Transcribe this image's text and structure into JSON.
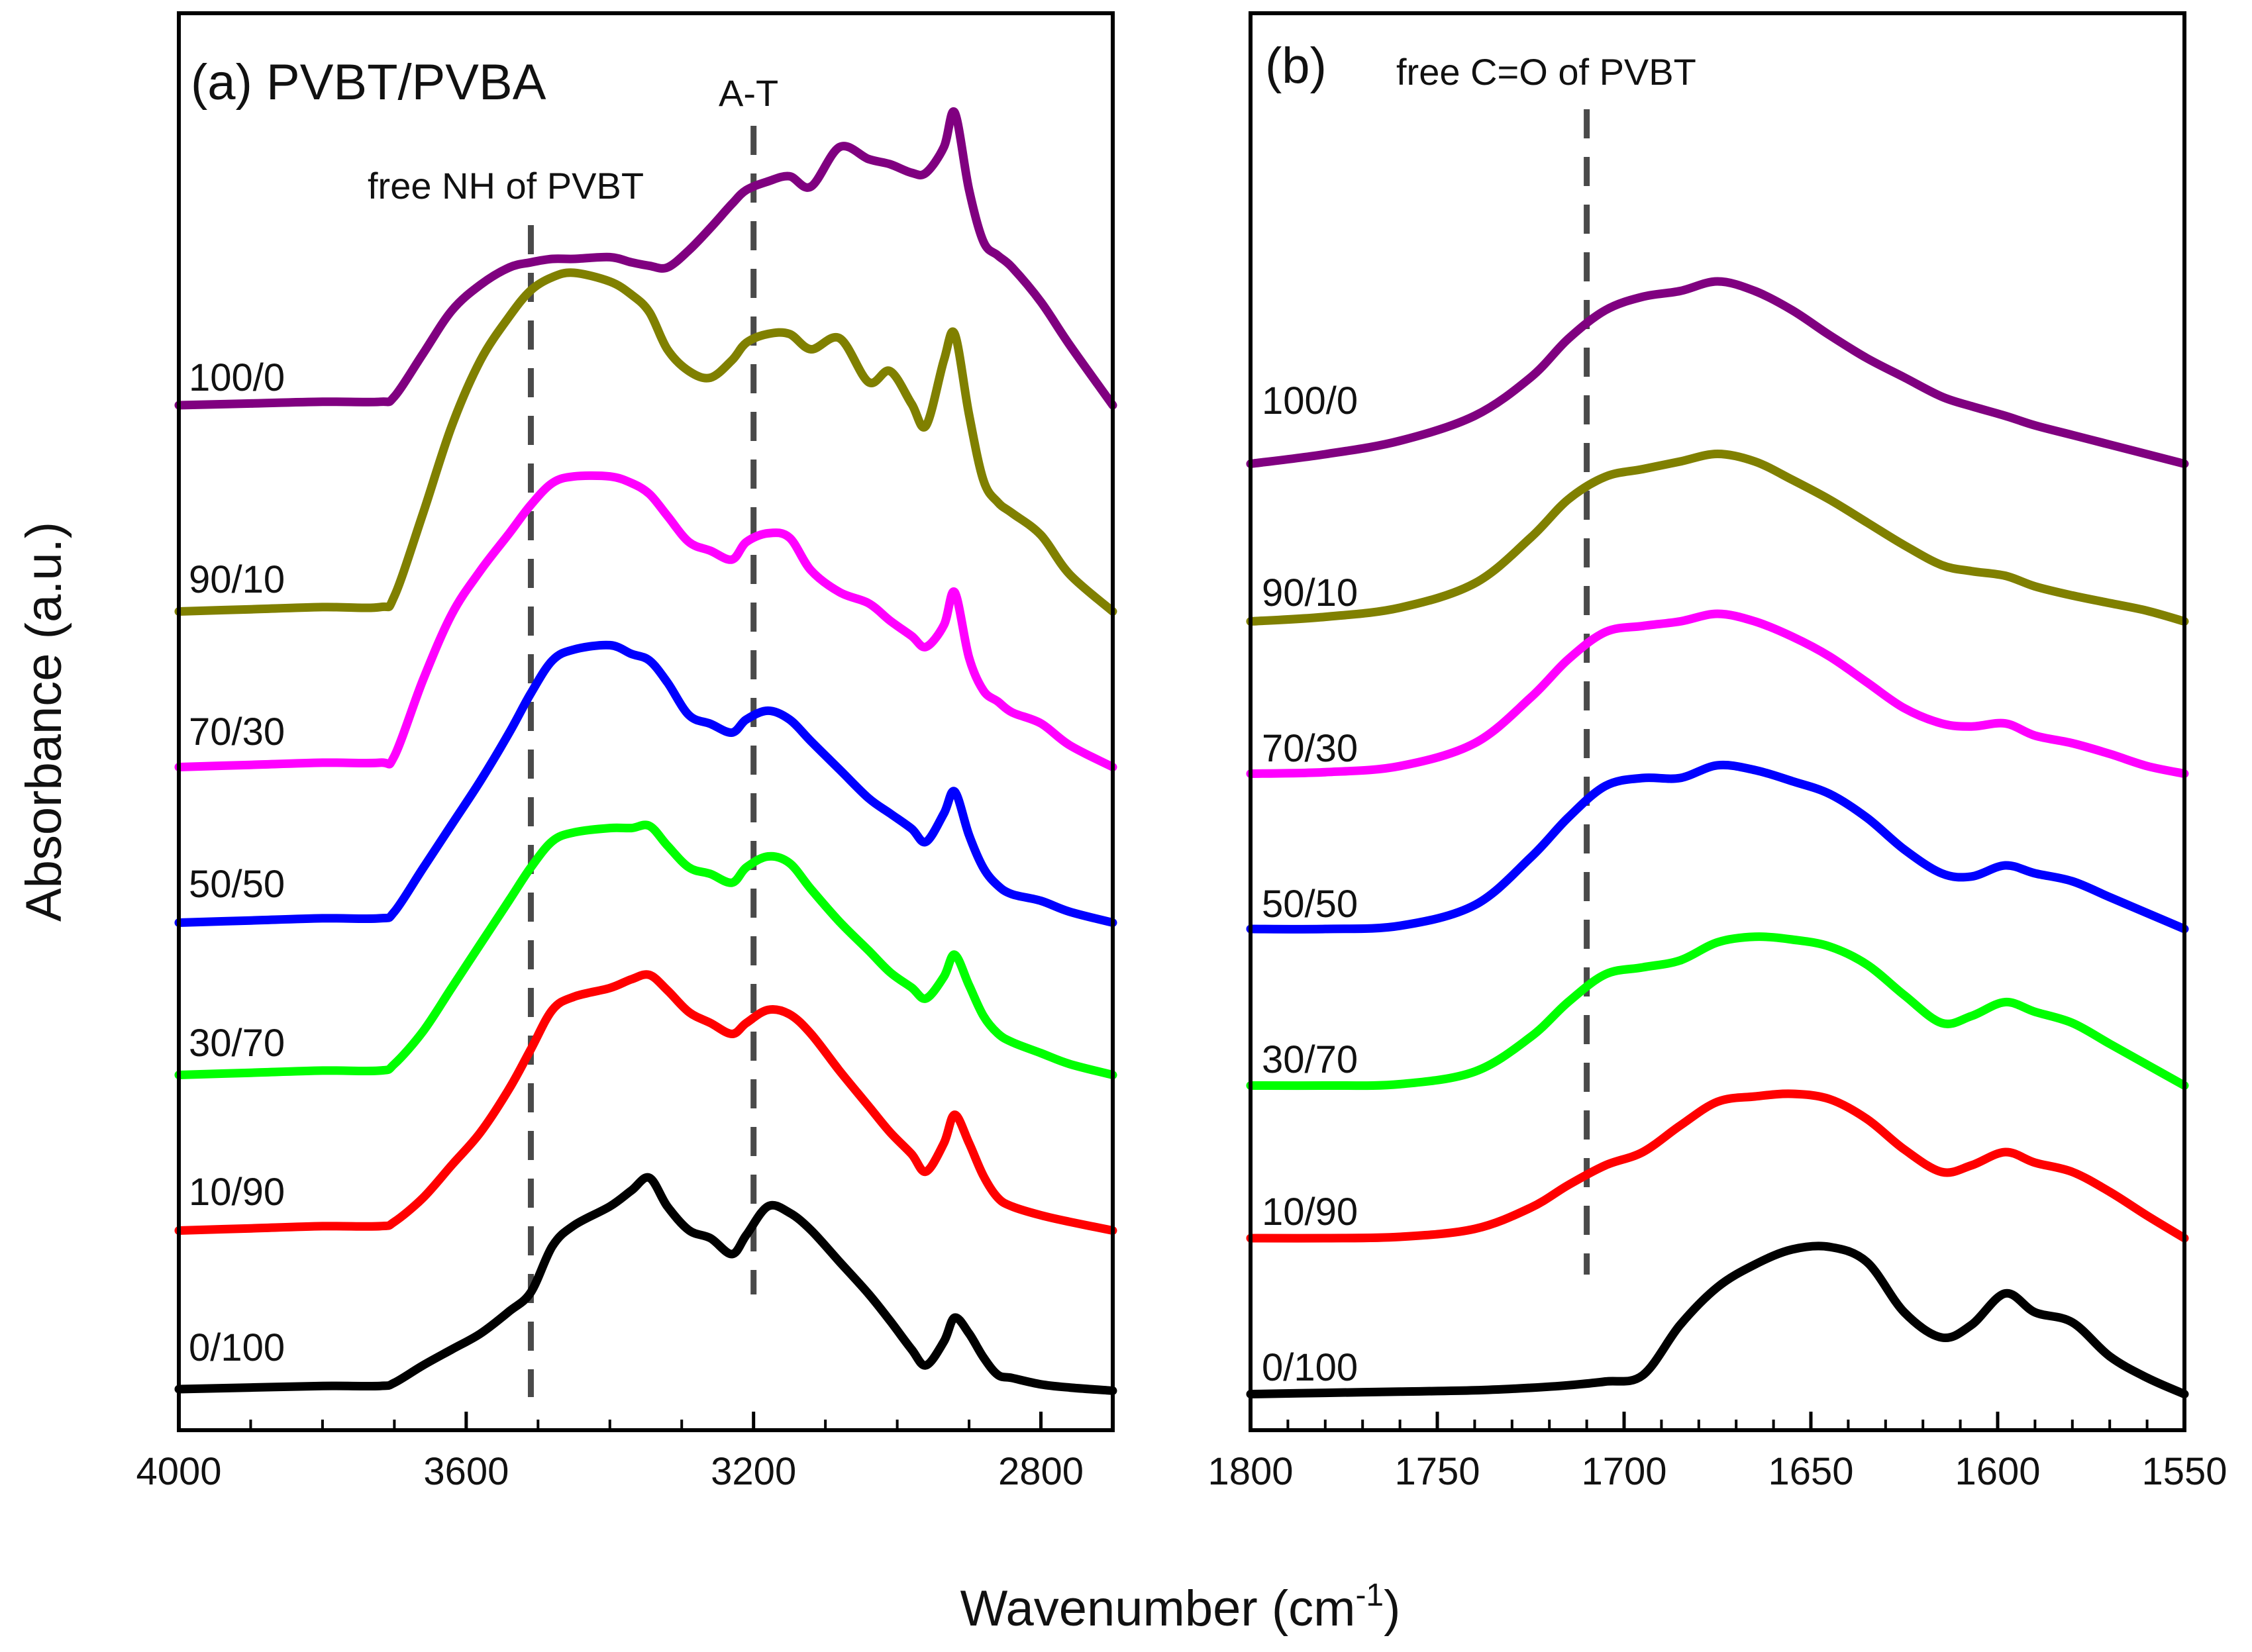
{
  "chart_data": [
    {
      "type": "line",
      "panel": "(a)",
      "title": "(a) PVBT/PVBA",
      "xlabel": "Wavenumber (cm-1)",
      "ylabel": "Absorbance (a.u.)",
      "xlim": [
        4000,
        2700
      ],
      "x_reversed": true,
      "xticks": [
        4000,
        3600,
        3200,
        2800
      ],
      "grid": false,
      "annotations": [
        {
          "text": "free NH of PVBT",
          "x": 3510
        },
        {
          "text": "A-T",
          "x": 3200
        }
      ],
      "series": [
        {
          "name": "0/100",
          "color": "#000000",
          "x": [
            4000,
            3900,
            3800,
            3720,
            3700,
            3660,
            3620,
            3580,
            3540,
            3510,
            3480,
            3450,
            3400,
            3370,
            3345,
            3320,
            3290,
            3260,
            3230,
            3210,
            3180,
            3150,
            3120,
            3080,
            3040,
            3010,
            2980,
            2960,
            2935,
            2920,
            2900,
            2880,
            2860,
            2840,
            2800,
            2760,
            2700
          ],
          "y": [
            0.05,
            0.06,
            0.07,
            0.07,
            0.09,
            0.2,
            0.3,
            0.4,
            0.54,
            0.66,
            0.95,
            1.08,
            1.2,
            1.3,
            1.38,
            1.2,
            1.05,
            1.0,
            0.9,
            1.02,
            1.2,
            1.16,
            1.05,
            0.85,
            0.65,
            0.48,
            0.3,
            0.2,
            0.35,
            0.5,
            0.4,
            0.25,
            0.14,
            0.12,
            0.08,
            0.06,
            0.04
          ]
        },
        {
          "name": "10/90",
          "color": "#ff0000",
          "x": [
            4000,
            3900,
            3800,
            3720,
            3700,
            3660,
            3620,
            3580,
            3540,
            3510,
            3480,
            3450,
            3400,
            3370,
            3345,
            3320,
            3290,
            3260,
            3230,
            3210,
            3180,
            3150,
            3120,
            3080,
            3040,
            3010,
            2980,
            2960,
            2935,
            2920,
            2900,
            2880,
            2860,
            2840,
            2800,
            2760,
            2700
          ],
          "y": [
            0.05,
            0.06,
            0.07,
            0.07,
            0.09,
            0.2,
            0.35,
            0.5,
            0.7,
            0.88,
            1.06,
            1.12,
            1.16,
            1.2,
            1.22,
            1.15,
            1.05,
            1.0,
            0.95,
            1.0,
            1.06,
            1.04,
            0.95,
            0.78,
            0.62,
            0.5,
            0.4,
            0.32,
            0.45,
            0.58,
            0.45,
            0.3,
            0.2,
            0.16,
            0.12,
            0.09,
            0.05
          ]
        },
        {
          "name": "30/70",
          "color": "#00ff00",
          "x": [
            4000,
            3900,
            3800,
            3720,
            3700,
            3660,
            3620,
            3580,
            3540,
            3510,
            3480,
            3450,
            3400,
            3370,
            3345,
            3320,
            3290,
            3260,
            3230,
            3210,
            3180,
            3150,
            3120,
            3080,
            3040,
            3010,
            2980,
            2960,
            2935,
            2920,
            2900,
            2880,
            2860,
            2840,
            2800,
            2760,
            2700
          ],
          "y": [
            0.05,
            0.06,
            0.07,
            0.07,
            0.1,
            0.25,
            0.45,
            0.65,
            0.85,
            1.0,
            1.12,
            1.16,
            1.18,
            1.18,
            1.19,
            1.1,
            1.0,
            0.97,
            0.93,
            1.0,
            1.05,
            1.02,
            0.9,
            0.75,
            0.62,
            0.52,
            0.45,
            0.4,
            0.5,
            0.6,
            0.46,
            0.32,
            0.24,
            0.2,
            0.15,
            0.1,
            0.05
          ]
        },
        {
          "name": "50/50",
          "color": "#0000ff",
          "x": [
            4000,
            3900,
            3800,
            3720,
            3700,
            3660,
            3620,
            3580,
            3540,
            3510,
            3480,
            3450,
            3400,
            3370,
            3345,
            3320,
            3290,
            3260,
            3230,
            3210,
            3180,
            3150,
            3120,
            3080,
            3040,
            3010,
            2980,
            2960,
            2935,
            2920,
            2900,
            2880,
            2860,
            2840,
            2800,
            2760,
            2700
          ],
          "y": [
            0.05,
            0.06,
            0.07,
            0.07,
            0.1,
            0.3,
            0.5,
            0.7,
            0.92,
            1.1,
            1.25,
            1.3,
            1.32,
            1.28,
            1.25,
            1.15,
            1.0,
            0.96,
            0.92,
            0.98,
            1.02,
            0.98,
            0.88,
            0.75,
            0.62,
            0.55,
            0.48,
            0.42,
            0.55,
            0.65,
            0.45,
            0.3,
            0.22,
            0.18,
            0.15,
            0.1,
            0.05
          ]
        },
        {
          "name": "70/30",
          "color": "#ff00ff",
          "x": [
            4000,
            3900,
            3800,
            3720,
            3700,
            3660,
            3620,
            3580,
            3540,
            3510,
            3480,
            3450,
            3400,
            3370,
            3345,
            3320,
            3290,
            3260,
            3230,
            3210,
            3180,
            3150,
            3120,
            3080,
            3040,
            3010,
            2980,
            2960,
            2935,
            2920,
            2900,
            2880,
            2860,
            2840,
            2800,
            2760,
            2700
          ],
          "y": [
            0.05,
            0.06,
            0.07,
            0.07,
            0.1,
            0.45,
            0.75,
            0.95,
            1.12,
            1.25,
            1.35,
            1.38,
            1.38,
            1.35,
            1.3,
            1.2,
            1.08,
            1.04,
            1.0,
            1.08,
            1.12,
            1.1,
            0.95,
            0.85,
            0.8,
            0.72,
            0.65,
            0.6,
            0.7,
            0.85,
            0.55,
            0.4,
            0.35,
            0.3,
            0.25,
            0.15,
            0.05
          ]
        },
        {
          "name": "90/10",
          "color": "#808000",
          "x": [
            4000,
            3900,
            3800,
            3720,
            3700,
            3660,
            3620,
            3580,
            3540,
            3510,
            3480,
            3450,
            3400,
            3370,
            3345,
            3320,
            3290,
            3260,
            3230,
            3210,
            3180,
            3150,
            3120,
            3080,
            3040,
            3010,
            2980,
            2960,
            2935,
            2920,
            2900,
            2880,
            2860,
            2840,
            2800,
            2760,
            2700
          ],
          "y": [
            0.05,
            0.06,
            0.07,
            0.07,
            0.12,
            0.5,
            0.9,
            1.2,
            1.4,
            1.52,
            1.58,
            1.6,
            1.56,
            1.5,
            1.42,
            1.25,
            1.15,
            1.12,
            1.2,
            1.28,
            1.32,
            1.32,
            1.25,
            1.3,
            1.1,
            1.15,
            1.0,
            0.9,
            1.2,
            1.32,
            0.95,
            0.65,
            0.55,
            0.5,
            0.4,
            0.22,
            0.05
          ]
        },
        {
          "name": "100/0",
          "color": "#800080",
          "x": [
            4000,
            3900,
            3800,
            3720,
            3700,
            3660,
            3620,
            3580,
            3540,
            3510,
            3480,
            3450,
            3400,
            3370,
            3345,
            3320,
            3290,
            3260,
            3230,
            3210,
            3180,
            3150,
            3120,
            3080,
            3040,
            3010,
            2980,
            2960,
            2935,
            2920,
            2900,
            2880,
            2860,
            2840,
            2800,
            2760,
            2700
          ],
          "y": [
            0.05,
            0.06,
            0.07,
            0.07,
            0.1,
            0.35,
            0.6,
            0.75,
            0.85,
            0.88,
            0.9,
            0.9,
            0.91,
            0.88,
            0.86,
            0.85,
            0.95,
            1.08,
            1.22,
            1.3,
            1.35,
            1.38,
            1.32,
            1.55,
            1.48,
            1.45,
            1.4,
            1.4,
            1.55,
            1.75,
            1.3,
            1.0,
            0.92,
            0.85,
            0.65,
            0.4,
            0.05
          ]
        }
      ],
      "series_labels": [
        "0/100",
        "10/90",
        "30/70",
        "50/50",
        "70/30",
        "90/10",
        "100/0"
      ]
    },
    {
      "type": "line",
      "panel": "(b)",
      "title": "(b)",
      "xlabel": "Wavenumber (cm-1)",
      "ylabel": "Absorbance (a.u.)",
      "xlim": [
        1800,
        1550
      ],
      "x_reversed": true,
      "xticks": [
        1800,
        1750,
        1700,
        1650,
        1600,
        1550
      ],
      "grid": false,
      "annotations": [
        {
          "text": "free C=O of PVBT",
          "x": 1710
        }
      ],
      "series": [
        {
          "name": "0/100",
          "color": "#000000",
          "x": [
            1800,
            1780,
            1760,
            1740,
            1725,
            1715,
            1705,
            1695,
            1685,
            1675,
            1665,
            1655,
            1645,
            1635,
            1625,
            1615,
            1607,
            1598,
            1590,
            1580,
            1570,
            1560,
            1550
          ],
          "y": [
            0.05,
            0.06,
            0.07,
            0.08,
            0.1,
            0.12,
            0.15,
            0.2,
            0.6,
            0.9,
            1.08,
            1.2,
            1.22,
            1.1,
            0.7,
            0.5,
            0.6,
            0.85,
            0.7,
            0.62,
            0.35,
            0.18,
            0.05
          ]
        },
        {
          "name": "10/90",
          "color": "#ff0000",
          "x": [
            1800,
            1780,
            1760,
            1740,
            1725,
            1715,
            1705,
            1695,
            1685,
            1675,
            1665,
            1655,
            1645,
            1635,
            1625,
            1615,
            1607,
            1598,
            1590,
            1580,
            1570,
            1560,
            1550
          ],
          "y": [
            0.05,
            0.05,
            0.06,
            0.12,
            0.28,
            0.45,
            0.6,
            0.7,
            0.9,
            1.08,
            1.12,
            1.14,
            1.1,
            0.95,
            0.72,
            0.55,
            0.6,
            0.7,
            0.62,
            0.55,
            0.4,
            0.22,
            0.05
          ]
        },
        {
          "name": "30/70",
          "color": "#00ff00",
          "x": [
            1800,
            1780,
            1760,
            1740,
            1725,
            1715,
            1705,
            1695,
            1685,
            1675,
            1665,
            1655,
            1645,
            1635,
            1625,
            1615,
            1607,
            1598,
            1590,
            1580,
            1570,
            1560,
            1550
          ],
          "y": [
            0.05,
            0.05,
            0.06,
            0.15,
            0.4,
            0.65,
            0.85,
            0.9,
            0.95,
            1.08,
            1.12,
            1.1,
            1.05,
            0.92,
            0.7,
            0.5,
            0.55,
            0.65,
            0.58,
            0.5,
            0.35,
            0.2,
            0.05
          ]
        },
        {
          "name": "50/50",
          "color": "#0000ff",
          "x": [
            1800,
            1780,
            1760,
            1740,
            1725,
            1715,
            1705,
            1695,
            1685,
            1675,
            1665,
            1655,
            1645,
            1635,
            1625,
            1615,
            1607,
            1598,
            1590,
            1580,
            1570,
            1560,
            1550
          ],
          "y": [
            0.05,
            0.05,
            0.07,
            0.2,
            0.5,
            0.75,
            0.95,
            1.0,
            1.0,
            1.08,
            1.05,
            0.98,
            0.9,
            0.75,
            0.55,
            0.4,
            0.38,
            0.45,
            0.4,
            0.35,
            0.25,
            0.15,
            0.05
          ]
        },
        {
          "name": "70/30",
          "color": "#ff00ff",
          "x": [
            1800,
            1780,
            1760,
            1740,
            1725,
            1715,
            1705,
            1695,
            1685,
            1675,
            1665,
            1655,
            1645,
            1635,
            1625,
            1615,
            1607,
            1598,
            1590,
            1580,
            1570,
            1560,
            1550
          ],
          "y": [
            0.05,
            0.06,
            0.1,
            0.25,
            0.55,
            0.8,
            0.98,
            1.02,
            1.05,
            1.1,
            1.05,
            0.95,
            0.82,
            0.65,
            0.48,
            0.38,
            0.36,
            0.38,
            0.3,
            0.25,
            0.18,
            0.1,
            0.05
          ]
        },
        {
          "name": "90/10",
          "color": "#808000",
          "x": [
            1800,
            1780,
            1760,
            1740,
            1725,
            1715,
            1705,
            1695,
            1685,
            1675,
            1665,
            1655,
            1645,
            1635,
            1625,
            1615,
            1607,
            1598,
            1590,
            1580,
            1570,
            1560,
            1550
          ],
          "y": [
            0.05,
            0.08,
            0.14,
            0.3,
            0.6,
            0.85,
            1.0,
            1.05,
            1.1,
            1.15,
            1.1,
            0.98,
            0.85,
            0.7,
            0.55,
            0.42,
            0.38,
            0.35,
            0.28,
            0.22,
            0.17,
            0.12,
            0.05
          ]
        },
        {
          "name": "100/0",
          "color": "#800080",
          "x": [
            1800,
            1780,
            1760,
            1740,
            1725,
            1715,
            1705,
            1695,
            1685,
            1675,
            1665,
            1655,
            1645,
            1635,
            1625,
            1615,
            1607,
            1598,
            1590,
            1580,
            1570,
            1560,
            1550
          ],
          "y": [
            0.05,
            0.1,
            0.17,
            0.3,
            0.5,
            0.7,
            0.85,
            0.92,
            0.95,
            1.0,
            0.95,
            0.85,
            0.72,
            0.6,
            0.5,
            0.4,
            0.35,
            0.3,
            0.25,
            0.2,
            0.15,
            0.1,
            0.05
          ]
        }
      ],
      "series_labels": [
        "0/100",
        "10/90",
        "30/70",
        "50/50",
        "70/30",
        "90/10",
        "100/0"
      ]
    }
  ],
  "axis": {
    "ylabel": "Absorbance (a.u.)",
    "xlabel_main": "Wavenumber (cm",
    "xlabel_sup": "-1",
    "xlabel_close": ")"
  }
}
